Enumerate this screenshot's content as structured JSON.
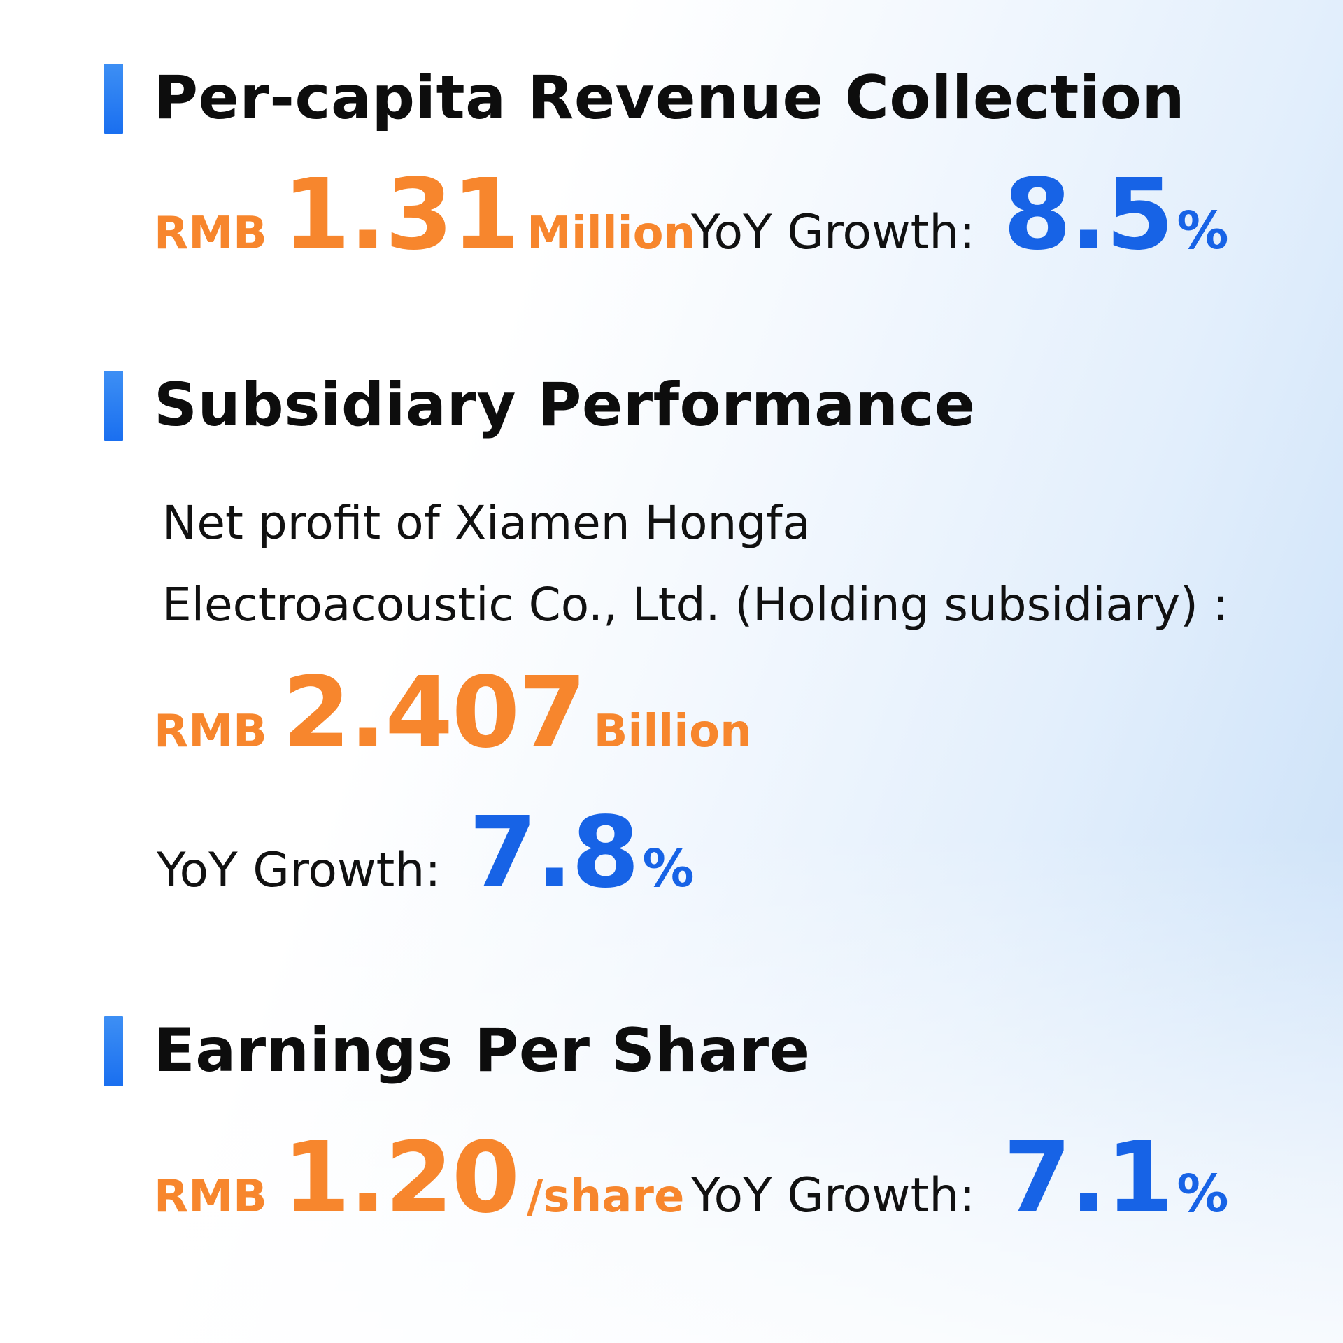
{
  "sections": [
    {
      "title": "Per-capita Revenue Collection",
      "value": {
        "prefix": "RMB",
        "number": "1.31",
        "unit": "Million"
      },
      "growth": {
        "label": "YoY Growth:",
        "number": "8.5",
        "unit": "%"
      }
    },
    {
      "title": "Subsidiary Performance",
      "description_lines": [
        "Net profit of Xiamen Hongfa",
        "Electroacoustic Co., Ltd. (Holding subsidiary) :"
      ],
      "value": {
        "prefix": "RMB",
        "number": "2.407",
        "unit": "Billion"
      },
      "growth": {
        "label": "YoY Growth:",
        "number": "7.8",
        "unit": "%"
      }
    },
    {
      "title": "Earnings Per Share",
      "value": {
        "prefix": "RMB",
        "number": "1.20",
        "unit": "/share"
      },
      "growth": {
        "label": "YoY Growth:",
        "number": "7.1",
        "unit": "%"
      }
    }
  ],
  "colors": {
    "accent_bar": "#1a6ff0",
    "value_orange": "#f7862d",
    "growth_blue": "#1763e6",
    "title_text": "#0d0d0d"
  }
}
